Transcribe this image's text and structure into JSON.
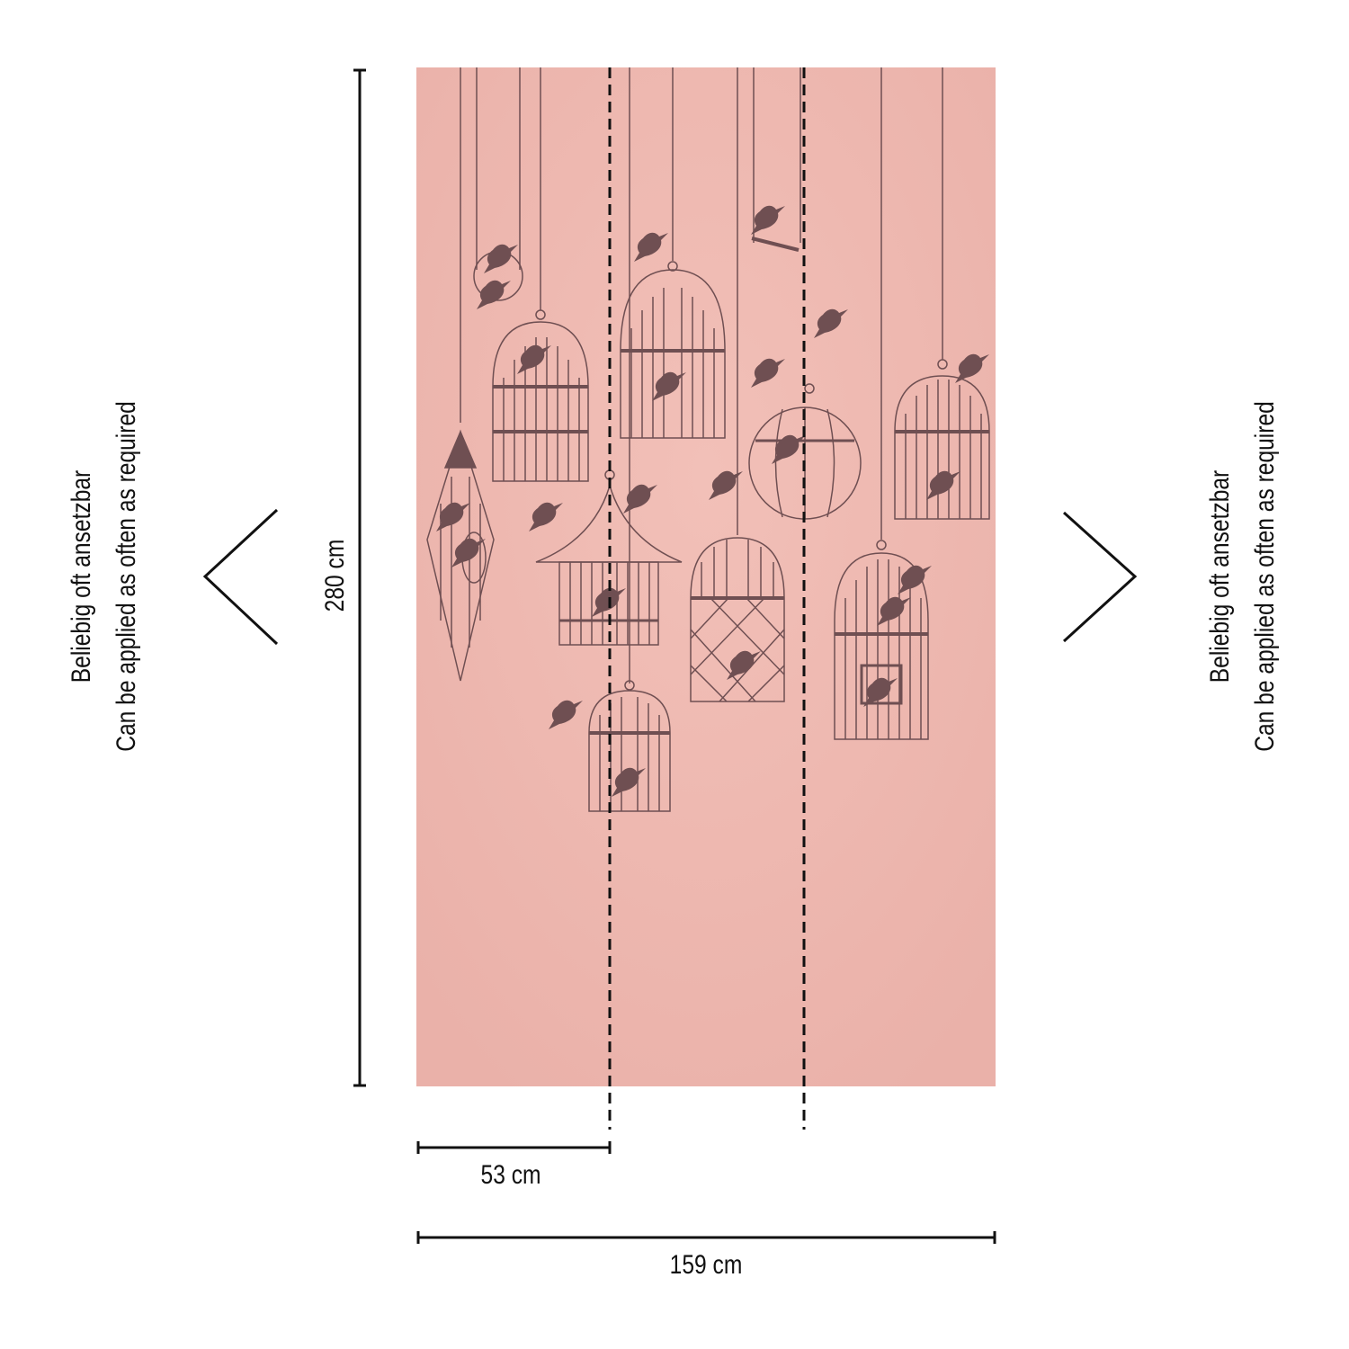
{
  "panel": {
    "color": "#efb9b1",
    "motif_color": "#6f4f52",
    "motif": "hanging birdcages with birds"
  },
  "dimensions": {
    "height_label": "280 cm",
    "strip_width_label": "53 cm",
    "total_width_label": "159 cm"
  },
  "side_note": {
    "line1": "Beliebig oft ansetzbar",
    "line2": "Can be applied as often as required"
  },
  "icons": [
    "chevron-left-icon",
    "chevron-right-icon"
  ]
}
